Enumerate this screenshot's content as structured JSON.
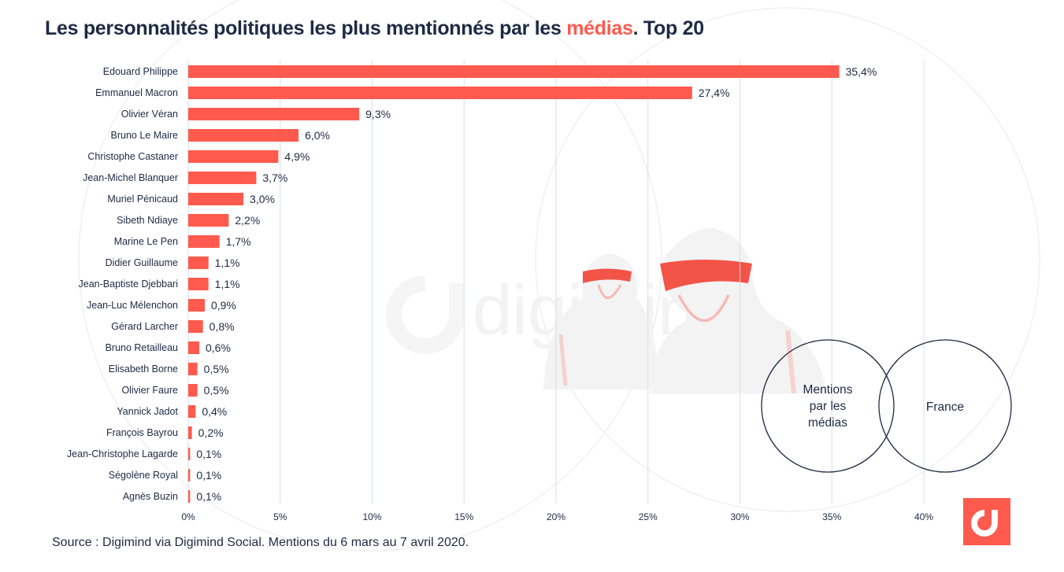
{
  "title": {
    "prefix": "Les personnalités politiques les plus mentionnés par les ",
    "highlight": "médias",
    "suffix": ". Top 20"
  },
  "source": "Source : Digimind via Digimind Social. Mentions du 6 mars au 7 avril 2020.",
  "colors": {
    "bar": "#ff5a4d",
    "text": "#1e2a44",
    "grid": "#d5deeb",
    "accent": "#ff5a4d"
  },
  "watermark": {
    "brand": "digimind",
    "logo_icon": "digimind-d-icon"
  },
  "venn": {
    "left_label_lines": [
      "Mentions",
      "par les",
      "médias"
    ],
    "right_label": "France"
  },
  "chart_data": {
    "type": "bar",
    "orientation": "horizontal",
    "title": "Les personnalités politiques les plus mentionnés par les médias. Top 20",
    "xlabel": "",
    "ylabel": "",
    "xlim": [
      0,
      40
    ],
    "grid": true,
    "tick_values": [
      0,
      5,
      10,
      15,
      20,
      25,
      30,
      35,
      40
    ],
    "tick_labels": [
      "0%",
      "5%",
      "10%",
      "15%",
      "20%",
      "25%",
      "30%",
      "35%",
      "40%"
    ],
    "categories": [
      "Edouard Philippe",
      "Emmanuel Macron",
      "Olivier Véran",
      "Bruno Le Maire",
      "Christophe Castaner",
      "Jean-Michel Blanquer",
      "Muriel Pénicaud",
      "Sibeth Ndiaye",
      "Marine Le Pen",
      "Didier Guillaume",
      "Jean-Baptiste Djebbari",
      "Jean-Luc Mélenchon",
      "Gérard Larcher",
      "Bruno Retailleau",
      "Elisabeth Borne",
      "Olivier Faure",
      "Yannick Jadot",
      "François Bayrou",
      "Jean-Christophe Lagarde",
      "Ségolène Royal",
      "Agnès Buzin"
    ],
    "values": [
      35.4,
      27.4,
      9.3,
      6.0,
      4.9,
      3.7,
      3.0,
      2.2,
      1.7,
      1.1,
      1.1,
      0.9,
      0.8,
      0.6,
      0.5,
      0.5,
      0.4,
      0.2,
      0.1,
      0.1,
      0.1
    ],
    "value_labels": [
      "35,4%",
      "27,4%",
      "9,3%",
      "6,0%",
      "4,9%",
      "3,7%",
      "3,0%",
      "2,2%",
      "1,7%",
      "1,1%",
      "1,1%",
      "0,9%",
      "0,8%",
      "0,6%",
      "0,5%",
      "0,5%",
      "0,4%",
      "0,2%",
      "0,1%",
      "0,1%",
      "0,1%"
    ]
  }
}
